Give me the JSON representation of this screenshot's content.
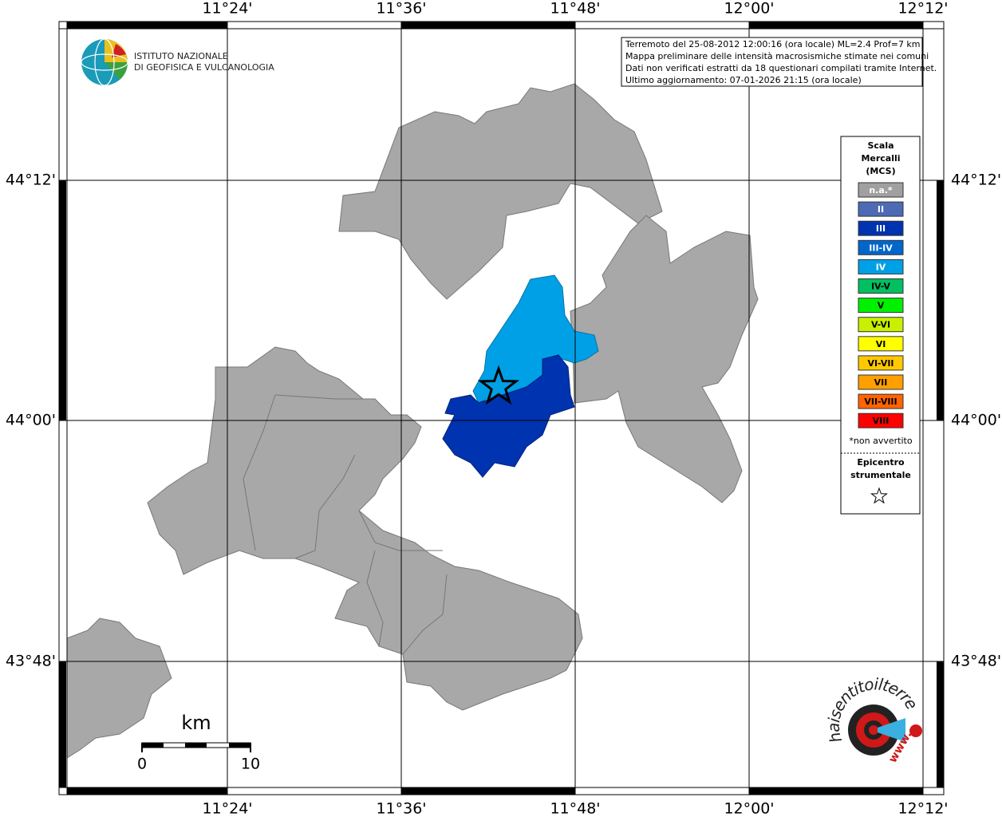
{
  "header": {
    "institute": [
      "ISTITUTO NAZIONALE",
      "DI GEOFISICA E VULCANOLOGIA"
    ]
  },
  "info": [
    "Terremoto del 25-08-2012 12:00:16 (ora locale) ML=2.4 Prof=7 km",
    "Mappa preliminare delle intensità macrosismiche stimate nei comuni",
    "Dati non verificati estratti da 18 questionari compilati tramite Internet.",
    "Ultimo aggiornamento: 07-01-2026 21:15 (ora locale)"
  ],
  "axes": {
    "longitude": [
      "11°24'",
      "11°36'",
      "11°48'",
      "12°00'",
      "12°12'"
    ],
    "latitude": [
      "44°12'",
      "44°00'",
      "43°48'"
    ]
  },
  "legend": {
    "title": [
      "Scala",
      "Mercalli",
      "(MCS)"
    ],
    "items": [
      {
        "label": "n.a.*",
        "color": "#a0a0a0",
        "text_color": "#ffffff"
      },
      {
        "label": "II",
        "color": "#4d6ab5",
        "text_color": "#ffffff"
      },
      {
        "label": "III",
        "color": "#0033b0",
        "text_color": "#ffffff"
      },
      {
        "label": "III-IV",
        "color": "#0066cc",
        "text_color": "#ffffff"
      },
      {
        "label": "IV",
        "color": "#00a0e6",
        "text_color": "#ffffff"
      },
      {
        "label": "IV-V",
        "color": "#00c060",
        "text_color": "#000000"
      },
      {
        "label": "V",
        "color": "#00f000",
        "text_color": "#000000"
      },
      {
        "label": "V-VI",
        "color": "#c8f000",
        "text_color": "#000000"
      },
      {
        "label": "VI",
        "color": "#ffff00",
        "text_color": "#000000"
      },
      {
        "label": "VI-VII",
        "color": "#ffc800",
        "text_color": "#000000"
      },
      {
        "label": "VII",
        "color": "#ffa000",
        "text_color": "#000000"
      },
      {
        "label": "VII-VIII",
        "color": "#ff6400",
        "text_color": "#000000"
      },
      {
        "label": "VIII",
        "color": "#ff0000",
        "text_color": "#000000"
      }
    ],
    "note": "*non avvertito",
    "epicenter": [
      "Epicentro",
      "strumentale"
    ]
  },
  "scale_bar": {
    "unit": "km",
    "ticks": [
      0,
      10
    ]
  },
  "logo": {
    "site": "haisentitoilterremoto.it",
    "www": "www."
  }
}
